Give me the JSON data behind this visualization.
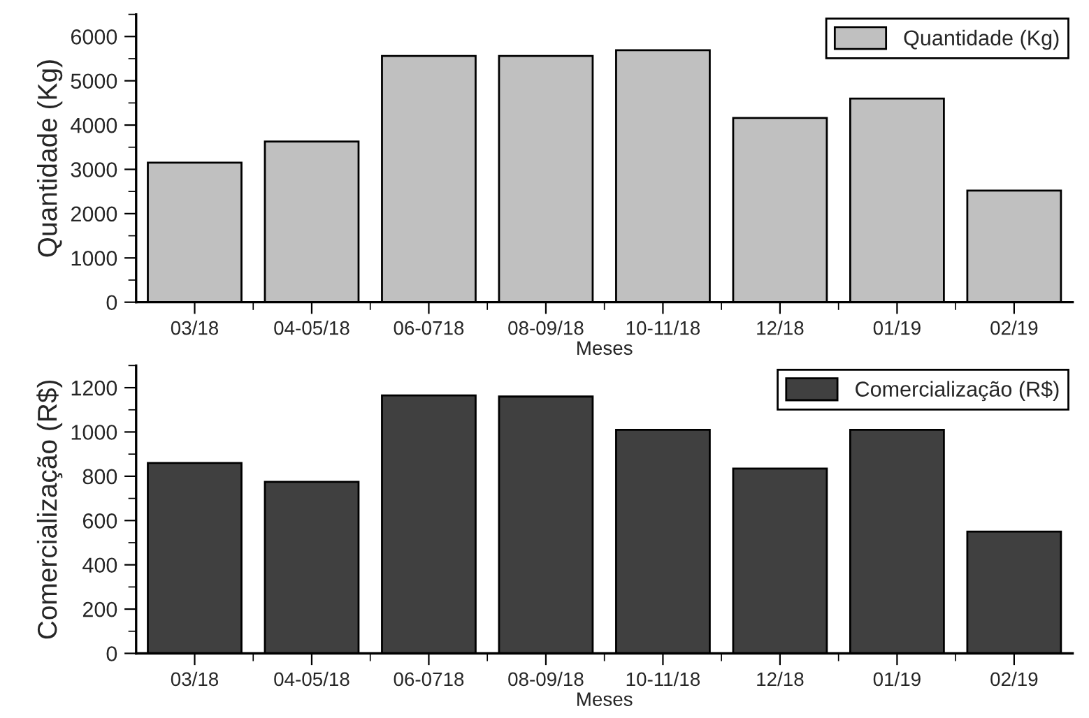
{
  "chart_data": [
    {
      "type": "bar",
      "categories": [
        "03/18",
        "04-05/18",
        "06-0718",
        "08-09/18",
        "10-11/18",
        "12/18",
        "01/19",
        "02/19"
      ],
      "xlabel": "Meses",
      "ylabel": "Quantidade (Kg)",
      "ylim": [
        0,
        6500
      ],
      "yticks": [
        0,
        1000,
        2000,
        3000,
        4000,
        5000,
        6000
      ],
      "legend": "top right",
      "grid": false,
      "series": [
        {
          "name": "Quantidade (Kg)",
          "color": "#c0c0c0",
          "values": [
            3150,
            3630,
            5560,
            5560,
            5690,
            4160,
            4600,
            2520
          ]
        }
      ]
    },
    {
      "type": "bar",
      "categories": [
        "03/18",
        "04-05/18",
        "06-0718",
        "08-09/18",
        "10-11/18",
        "12/18",
        "01/19",
        "02/19"
      ],
      "xlabel": "Meses",
      "ylabel": "Comercialização (R$)",
      "ylim": [
        0,
        1300
      ],
      "yticks": [
        0,
        200,
        400,
        600,
        800,
        1000,
        1200
      ],
      "legend": "top right",
      "grid": false,
      "series": [
        {
          "name": "Comercialização (R$)",
          "color": "#404040",
          "values": [
            860,
            775,
            1165,
            1160,
            1010,
            835,
            1010,
            550
          ]
        }
      ]
    }
  ]
}
